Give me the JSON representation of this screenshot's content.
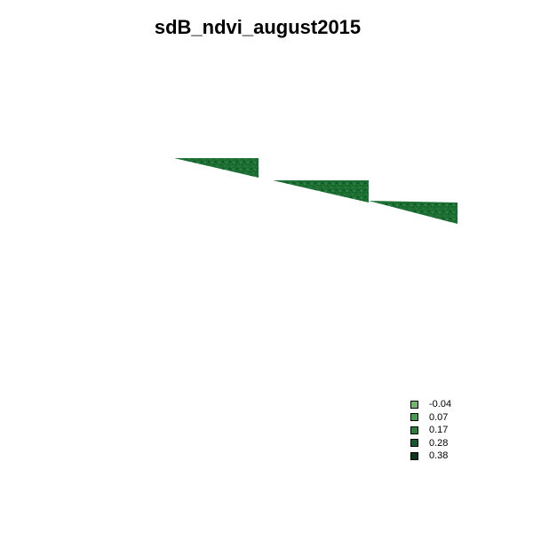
{
  "chart_data": {
    "type": "heatmap",
    "title": "sdB_ndvi_august2015",
    "xlabel": "",
    "ylabel": "",
    "grid": false,
    "axes": false,
    "legend": {
      "placement": "bottom-right",
      "entries": [
        {
          "label": "-0.04",
          "color": "#6fb96a"
        },
        {
          "label": "0.07",
          "color": "#41a048"
        },
        {
          "label": "0.17",
          "color": "#2a7f3a"
        },
        {
          "label": "0.28",
          "color": "#15592c"
        },
        {
          "label": "0.38",
          "color": "#0a3a1c"
        }
      ]
    },
    "raster_colors": [
      "#1d6f33",
      "#17622d",
      "#247a3a",
      "#0f5226",
      "#2b8a41",
      "#1a6a30"
    ]
  }
}
